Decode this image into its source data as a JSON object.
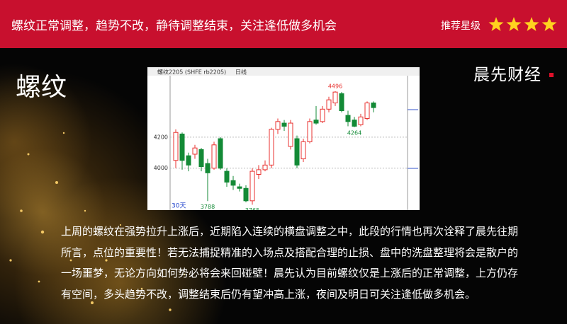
{
  "banner": {
    "title": "螺纹正常调整，趋势不改，静待调整结束，关注逢低做多机会",
    "rating_label": "推荐星级",
    "stars": 4
  },
  "heading": "螺纹",
  "brand": "晨先财经",
  "chart_data": {
    "type": "candlestick",
    "title": "螺纹2205 (SHFE rb2205)",
    "period": "日线",
    "range_label": "30天",
    "open": [
      4050,
      4220,
      4080,
      4090,
      4120,
      4030,
      4000,
      4190,
      3980,
      3920,
      3880,
      3870,
      3790,
      3960,
      3990,
      4020,
      4250,
      4290,
      4140,
      4190,
      4060,
      4170,
      4310,
      4300,
      4380,
      4420,
      4480,
      4340,
      4310,
      4280,
      4320,
      4420
    ],
    "high": [
      4250,
      4230,
      4100,
      4150,
      4130,
      4060,
      4170,
      4200,
      4000,
      3950,
      3900,
      3890,
      4000,
      4020,
      4050,
      4260,
      4320,
      4310,
      4310,
      4210,
      4190,
      4320,
      4400,
      4400,
      4460,
      4496,
      4490,
      4370,
      4330,
      4350,
      4430,
      4430
    ],
    "low": [
      4000,
      3990,
      3980,
      4060,
      3980,
      3788,
      3990,
      3990,
      3880,
      3860,
      3850,
      3780,
      3765,
      3930,
      3980,
      4000,
      4220,
      4240,
      4120,
      4000,
      4040,
      4160,
      4280,
      4290,
      4360,
      4400,
      4360,
      4270,
      4264,
      4270,
      4310,
      4360
    ],
    "close": [
      4230,
      4050,
      4020,
      4130,
      4010,
      3970,
      4150,
      4000,
      3910,
      3890,
      3870,
      3790,
      3980,
      3990,
      4020,
      4250,
      4300,
      4270,
      4290,
      4020,
      4170,
      4300,
      4290,
      4380,
      4440,
      4490,
      4370,
      4300,
      4270,
      4330,
      4420,
      4390
    ],
    "annotations": [
      4496,
      4264,
      3788,
      3765
    ],
    "ylim": [
      3730,
      4600
    ],
    "yticks": [
      4000,
      4200
    ],
    "grid": true,
    "up_color": "#e8322f",
    "down_color": "#138a36"
  },
  "body": "上周的螺纹在强势拉升上涨后，近期陷入连续的横盘调整之中，此段的行情也再次诠释了晨先往期所言，点位的重要性！若无法捕捉精准的入场点及搭配合理的止损、盘中的洗盘整理将会是散户的一场噩梦，无论方向如何势必将会来回碰壁！晨先认为目前螺纹仅是上涨后的正常调整，上方仍存有空间，多头趋势不改，调整结束后仍有望冲高上涨，夜间及明日可关注逢低做多机会。"
}
